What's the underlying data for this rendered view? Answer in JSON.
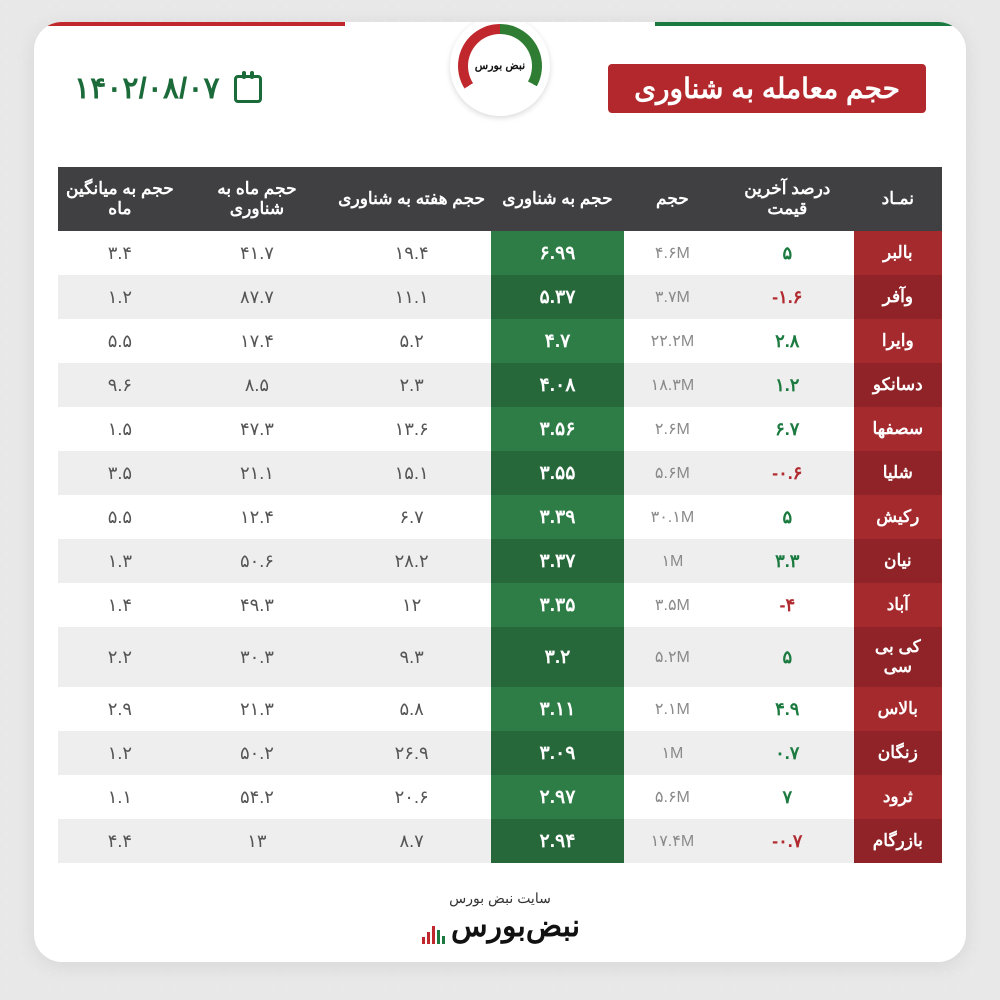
{
  "meta": {
    "title": "حجم معامله به شناوری",
    "date": "۱۴۰۲/۰۸/۰۷",
    "stripe_colors": [
      "#1b7a3f",
      "#ffffff",
      "#c0282d"
    ],
    "logo_text": "نبض\nبورس"
  },
  "columns": [
    "نمـاد",
    "درصد آخرین قیمت",
    "حجم",
    "حجم به شناوری",
    "حجم هفته به شناوری",
    "حجم ماه به شناوری",
    "حجم به میانگین ماه"
  ],
  "col_roles": [
    "sym",
    "pct",
    "vol",
    "ratio",
    "num",
    "num",
    "num"
  ],
  "col_widths_pct": [
    10,
    15,
    11,
    15,
    18,
    17,
    14
  ],
  "rows": [
    {
      "sym": "بالبر",
      "pct": "۵",
      "sign": "pos",
      "vol": "۴.۶M",
      "ratio": "۶.۹۹",
      "week": "۱۹.۴",
      "month": "۴۱.۷",
      "avg": "۳.۴"
    },
    {
      "sym": "وآفر",
      "pct": "-۱.۶",
      "sign": "neg",
      "vol": "۳.۷M",
      "ratio": "۵.۳۷",
      "week": "۱۱.۱",
      "month": "۸۷.۷",
      "avg": "۱.۲"
    },
    {
      "sym": "وایرا",
      "pct": "۲.۸",
      "sign": "pos",
      "vol": "۲۲.۲M",
      "ratio": "۴.۷",
      "week": "۵.۲",
      "month": "۱۷.۴",
      "avg": "۵.۵"
    },
    {
      "sym": "دسانکو",
      "pct": "۱.۲",
      "sign": "pos",
      "vol": "۱۸.۳M",
      "ratio": "۴.۰۸",
      "week": "۲.۳",
      "month": "۸.۵",
      "avg": "۹.۶"
    },
    {
      "sym": "سصفها",
      "pct": "۶.۷",
      "sign": "pos",
      "vol": "۲.۶M",
      "ratio": "۳.۵۶",
      "week": "۱۳.۶",
      "month": "۴۷.۳",
      "avg": "۱.۵"
    },
    {
      "sym": "شلیا",
      "pct": "-۰.۶",
      "sign": "neg",
      "vol": "۵.۶M",
      "ratio": "۳.۵۵",
      "week": "۱۵.۱",
      "month": "۲۱.۱",
      "avg": "۳.۵"
    },
    {
      "sym": "رکیش",
      "pct": "۵",
      "sign": "pos",
      "vol": "۳۰.۱M",
      "ratio": "۳.۳۹",
      "week": "۶.۷",
      "month": "۱۲.۴",
      "avg": "۵.۵"
    },
    {
      "sym": "نیان",
      "pct": "۳.۳",
      "sign": "pos",
      "vol": "۱M",
      "ratio": "۳.۳۷",
      "week": "۲۸.۲",
      "month": "۵۰.۶",
      "avg": "۱.۳"
    },
    {
      "sym": "آباد",
      "pct": "-۴",
      "sign": "neg",
      "vol": "۳.۵M",
      "ratio": "۳.۳۵",
      "week": "۱۲",
      "month": "۴۹.۳",
      "avg": "۱.۴"
    },
    {
      "sym": "کی بی سی",
      "pct": "۵",
      "sign": "pos",
      "vol": "۵.۲M",
      "ratio": "۳.۲",
      "week": "۹.۳",
      "month": "۳۰.۳",
      "avg": "۲.۲"
    },
    {
      "sym": "بالاس",
      "pct": "۴.۹",
      "sign": "pos",
      "vol": "۲.۱M",
      "ratio": "۳.۱۱",
      "week": "۵.۸",
      "month": "۲۱.۳",
      "avg": "۲.۹"
    },
    {
      "sym": "زنگان",
      "pct": "۰.۷",
      "sign": "pos",
      "vol": "۱M",
      "ratio": "۳.۰۹",
      "week": "۲۶.۹",
      "month": "۵۰.۲",
      "avg": "۱.۲"
    },
    {
      "sym": "ثرود",
      "pct": "۷",
      "sign": "pos",
      "vol": "۵.۶M",
      "ratio": "۲.۹۷",
      "week": "۲۰.۶",
      "month": "۵۴.۲",
      "avg": "۱.۱"
    },
    {
      "sym": "بازرگام",
      "pct": "-۰.۷",
      "sign": "neg",
      "vol": "۱۷.۴M",
      "ratio": "۲.۹۴",
      "week": "۸.۷",
      "month": "۱۳",
      "avg": "۴.۴"
    }
  ],
  "footer": {
    "sub": "سایت نبض بورس",
    "brand": "نبض‌بورس"
  },
  "style": {
    "card_bg": "#ffffff",
    "page_bg": "#e8e8e8",
    "header_bg": "#404042",
    "header_fg": "#ffffff",
    "sym_bg_odd": "#a52a2e",
    "sym_bg_even": "#8f2327",
    "ratio_bg_odd": "#2e7d46",
    "ratio_bg_even": "#26683a",
    "row_odd": "#ffffff",
    "row_even": "#eeeeee",
    "pos_color": "#1b7a3f",
    "neg_color": "#b02a2f",
    "title_chip_bg": "#b3282d",
    "date_color": "#1b6b3a",
    "font_family": "Tahoma",
    "title_fontsize": 28,
    "date_fontsize": 30,
    "th_fontsize": 17,
    "td_fontsize": 18
  }
}
